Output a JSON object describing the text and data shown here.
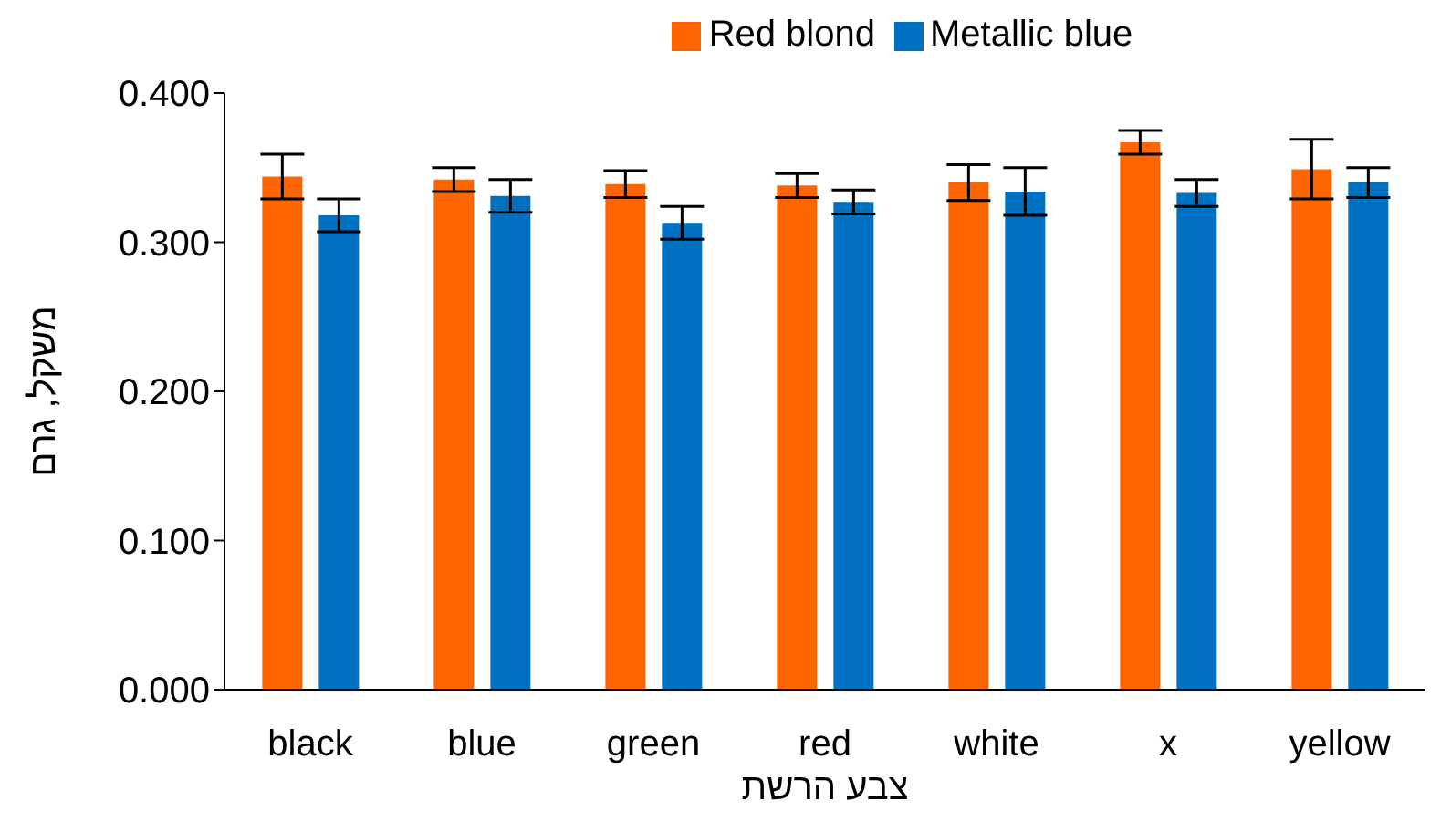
{
  "chart_data": {
    "type": "bar",
    "xlabel": "צבע הרשת",
    "ylabel": "משקל, גרם",
    "categories": [
      "black",
      "blue",
      "green",
      "red",
      "white",
      "x",
      "yellow"
    ],
    "series": [
      {
        "name": "Red blond",
        "color": "#ff6600",
        "values": [
          0.344,
          0.342,
          0.339,
          0.338,
          0.34,
          0.367,
          0.349
        ],
        "errors": [
          0.015,
          0.008,
          0.009,
          0.008,
          0.012,
          0.008,
          0.02
        ]
      },
      {
        "name": "Metallic blue",
        "color": "#0070c0",
        "values": [
          0.318,
          0.331,
          0.313,
          0.327,
          0.334,
          0.333,
          0.34
        ],
        "errors": [
          0.011,
          0.011,
          0.011,
          0.008,
          0.016,
          0.009,
          0.01
        ]
      }
    ],
    "ylim": [
      0,
      0.4
    ],
    "yticks": [
      {
        "value": 0,
        "label": "0.000"
      },
      {
        "value": 0.1,
        "label": "0.100"
      },
      {
        "value": 0.2,
        "label": "0.200"
      },
      {
        "value": 0.3,
        "label": "0.300"
      },
      {
        "value": 0.4,
        "label": "0.400"
      }
    ],
    "grid": false,
    "legend": "top"
  }
}
